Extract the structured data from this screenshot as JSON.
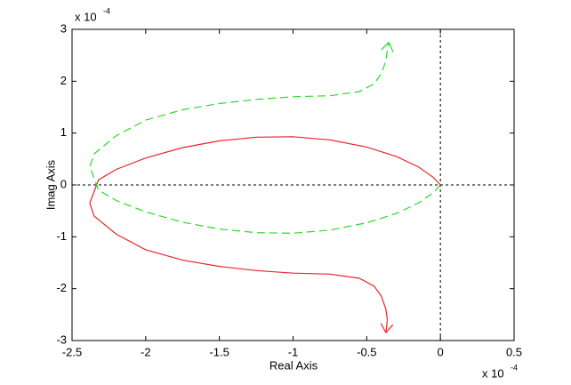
{
  "chart_data": {
    "type": "line",
    "xlabel": "Real Axis",
    "ylabel": "Imag Axis",
    "x_multiplier": "x 10",
    "x_exponent": "-4",
    "y_multiplier": "x 10",
    "y_exponent": "-4",
    "xlim": [
      -2.5,
      0.5
    ],
    "ylim": [
      -3,
      3
    ],
    "xticks": [
      -2.5,
      -2,
      -1.5,
      -1,
      -0.5,
      0,
      0.5
    ],
    "yticks": [
      -3,
      -2,
      -1,
      0,
      1,
      2,
      3
    ],
    "grid": false,
    "series": [
      {
        "color": "#e8262b",
        "dash": false,
        "x": [
          0,
          -0.05,
          -0.15,
          -0.3,
          -0.5,
          -0.75,
          -1.0,
          -1.25,
          -1.5,
          -1.75,
          -2.0,
          -2.2,
          -2.32,
          -2.38,
          -2.35,
          -2.2,
          -2.0,
          -1.75,
          -1.5,
          -1.25,
          -1.0,
          -0.75,
          -0.55,
          -0.45,
          -0.4,
          -0.37,
          -0.36,
          -0.37
        ],
        "values": [
          0,
          0.15,
          0.35,
          0.55,
          0.73,
          0.87,
          0.93,
          0.92,
          0.85,
          0.72,
          0.52,
          0.3,
          0.1,
          -0.35,
          -0.6,
          -0.95,
          -1.25,
          -1.45,
          -1.57,
          -1.65,
          -1.7,
          -1.72,
          -1.8,
          -1.95,
          -2.15,
          -2.4,
          -2.6,
          -2.85
        ]
      },
      {
        "color": "#2bd92b",
        "dash": true,
        "x": [
          0,
          -0.05,
          -0.15,
          -0.3,
          -0.5,
          -0.75,
          -1.0,
          -1.25,
          -1.5,
          -1.75,
          -2.0,
          -2.2,
          -2.32,
          -2.38,
          -2.35,
          -2.2,
          -2.0,
          -1.75,
          -1.5,
          -1.25,
          -1.0,
          -0.75,
          -0.55,
          -0.45,
          -0.4,
          -0.37,
          -0.36,
          -0.35
        ],
        "values": [
          0,
          -0.15,
          -0.35,
          -0.55,
          -0.73,
          -0.87,
          -0.93,
          -0.92,
          -0.85,
          -0.72,
          -0.52,
          -0.3,
          -0.1,
          0.35,
          0.6,
          0.95,
          1.25,
          1.45,
          1.57,
          1.65,
          1.7,
          1.72,
          1.8,
          1.95,
          2.15,
          2.4,
          2.6,
          2.75
        ]
      }
    ]
  }
}
